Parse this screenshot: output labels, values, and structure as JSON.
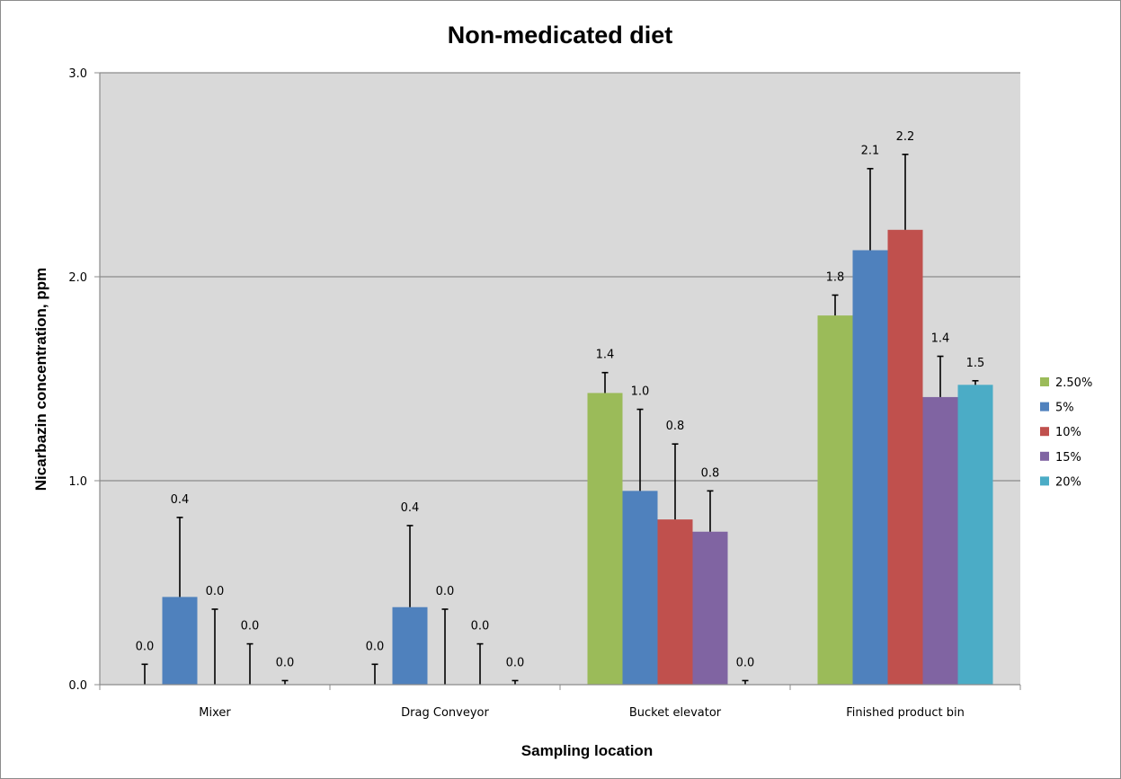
{
  "chart_data": {
    "type": "bar",
    "title": "Non-medicated diet",
    "xlabel": "Sampling location",
    "ylabel": "Nicarbazin concentration, ppm",
    "ylim": [
      0,
      3
    ],
    "yticks": [
      "0.0",
      "1.0",
      "2.0",
      "3.0"
    ],
    "grid": true,
    "legend_position": "right",
    "categories": [
      "Mixer",
      "Drag Conveyor",
      "Bucket elevator",
      "Finished product bin"
    ],
    "series": [
      {
        "name": "2.50%",
        "color": "#9bbb59",
        "values": [
          0.0,
          0.0,
          1.43,
          1.81
        ],
        "errors": [
          0.1,
          0.1,
          0.1,
          0.1
        ],
        "labels": [
          "0.0",
          "0.0",
          "1.4",
          "1.8"
        ]
      },
      {
        "name": "5%",
        "color": "#4f81bd",
        "values": [
          0.43,
          0.38,
          0.95,
          2.13
        ],
        "errors": [
          0.39,
          0.4,
          0.4,
          0.4
        ],
        "labels": [
          "0.4",
          "0.4",
          "1.0",
          "2.1"
        ]
      },
      {
        "name": "10%",
        "color": "#c0504d",
        "values": [
          0.0,
          0.0,
          0.81,
          2.23
        ],
        "errors": [
          0.37,
          0.37,
          0.37,
          0.37
        ],
        "labels": [
          "0.0",
          "0.0",
          "0.8",
          "2.2"
        ]
      },
      {
        "name": "15%",
        "color": "#8064a2",
        "values": [
          0.0,
          0.0,
          0.75,
          1.41
        ],
        "errors": [
          0.2,
          0.2,
          0.2,
          0.2
        ],
        "labels": [
          "0.0",
          "0.0",
          "0.8",
          "1.4"
        ]
      },
      {
        "name": "20%",
        "color": "#4bacc6",
        "values": [
          0.0,
          0.0,
          0.0,
          1.47
        ],
        "errors": [
          0.02,
          0.02,
          0.02,
          0.02
        ],
        "labels": [
          "0.0",
          "0.0",
          "0.0",
          "1.5"
        ]
      }
    ]
  }
}
